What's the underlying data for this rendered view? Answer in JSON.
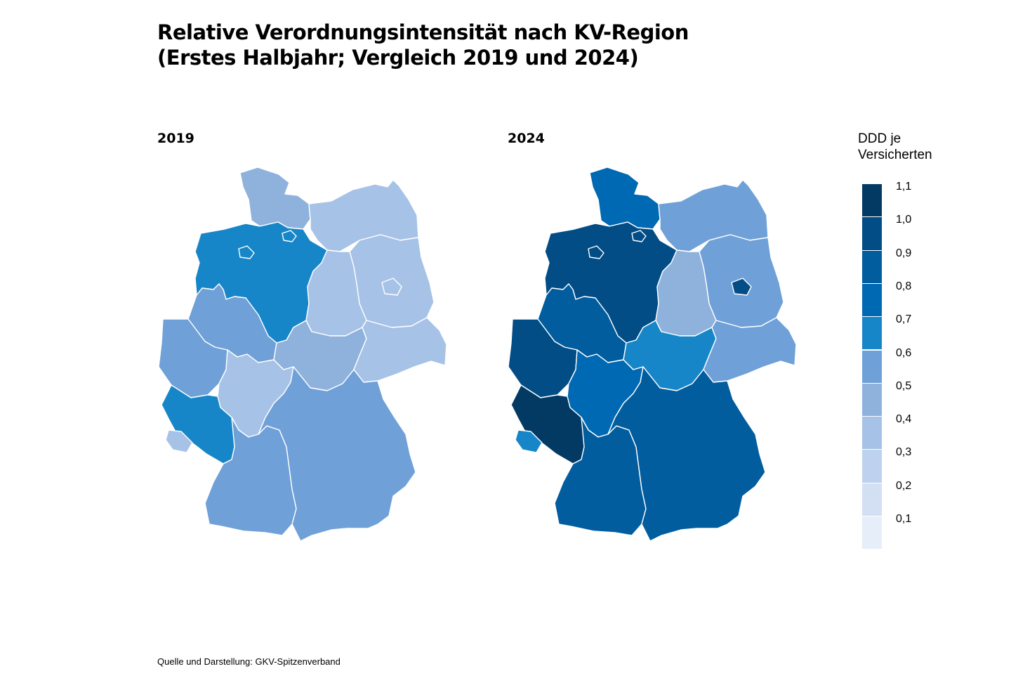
{
  "title": {
    "line1": "Relative Verordnungsintensität nach KV-Region",
    "line2": "(Erstes Halbjahr; Vergleich 2019 und 2024)"
  },
  "maps": [
    {
      "label": "2019",
      "regions": {
        "schleswig-holstein": "#8fb2dd",
        "hamburg": "#1786c8",
        "niedersachsen": "#1786c8",
        "bremen": "#1786c8",
        "mecklenburg-vorpommern": "#a6c2e6",
        "brandenburg": "#a6c2e6",
        "berlin": "#a6c2e6",
        "sachsen-anhalt": "#a6c2e6",
        "sachsen": "#a6c2e6",
        "westfalen-lippe": "#6fa0d8",
        "nordrhein": "#6fa0d8",
        "hessen": "#a6c2e6",
        "thueringen": "#8fb2dd",
        "rheinland-pfalz": "#1786c8",
        "saarland": "#a6c2e6",
        "baden-wuerttemberg": "#6fa0d8",
        "bayern": "#6fa0d8"
      }
    },
    {
      "label": "2024",
      "regions": {
        "schleswig-holstein": "#0069b4",
        "hamburg": "#024d86",
        "niedersachsen": "#024d86",
        "bremen": "#024d86",
        "mecklenburg-vorpommern": "#6fa0d8",
        "brandenburg": "#6fa0d8",
        "berlin": "#024d86",
        "sachsen-anhalt": "#8fb2dd",
        "sachsen": "#6fa0d8",
        "westfalen-lippe": "#025d9f",
        "nordrhein": "#024d86",
        "hessen": "#0069b4",
        "thueringen": "#1786c8",
        "rheinland-pfalz": "#023a63",
        "saarland": "#1786c8",
        "baden-wuerttemberg": "#025d9f",
        "bayern": "#025d9f"
      }
    }
  ],
  "legend": {
    "title_line1": "DDD je",
    "title_line2": "Versicherten",
    "ticks": [
      "1,1",
      "1,0",
      "0,9",
      "0,8",
      "0,7",
      "0,6",
      "0,5",
      "0,4",
      "0,3",
      "0,2",
      "0,1"
    ],
    "colors": [
      "#023a63",
      "#024d86",
      "#025d9f",
      "#0069b4",
      "#1786c8",
      "#6fa0d8",
      "#8fb2dd",
      "#a6c2e6",
      "#bed1ee",
      "#d3e0f4",
      "#e6eefa"
    ]
  },
  "source": "Quelle und Darstellung: GKV-Spitzenverband"
}
